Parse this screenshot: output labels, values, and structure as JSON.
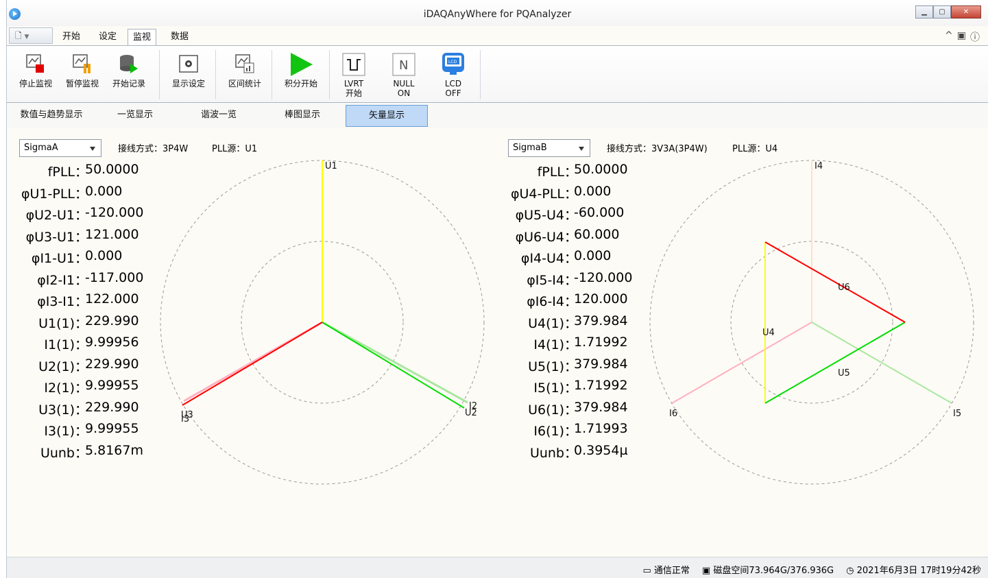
{
  "window": {
    "title": "iDAQAnyWhere for PQAnalyzer"
  },
  "menu": {
    "tabs": [
      "开始",
      "设定",
      "监视",
      "数据"
    ],
    "active": "监视"
  },
  "toolbar": {
    "stop_monitor": "停止监视",
    "pause_monitor": "暂停监视",
    "start_record": "开始记录",
    "display_settings": "显示设定",
    "interval_stats": "区间统计",
    "integral_start": "积分开始",
    "lvrt": "LVRT\n开始",
    "null_on": "NULL\nON",
    "lcd_off": "LCD\nOFF",
    "null_glyph": "N",
    "lcd_glyph": "LCD"
  },
  "subtabs": [
    "数值与趋势显示",
    "一览显示",
    "谐波一览",
    "棒图显示",
    "矢量显示"
  ],
  "active_subtab": "矢量显示",
  "left_panel": {
    "sigma": "SigmaA",
    "wiring": "接线方式：3P4W",
    "pll": "PLL源：U1",
    "measurements": [
      {
        "k": "fPLL：",
        "v": "50.0000"
      },
      {
        "k": "φU1-PLL：",
        "v": "0.000"
      },
      {
        "k": "φU2-U1：",
        "v": "-120.000"
      },
      {
        "k": "φU3-U1：",
        "v": "121.000"
      },
      {
        "k": "φI1-U1：",
        "v": "0.000"
      },
      {
        "k": "φI2-I1：",
        "v": "-117.000"
      },
      {
        "k": "φI3-I1：",
        "v": "122.000"
      },
      {
        "k": "U1(1)：",
        "v": "229.990"
      },
      {
        "k": "I1(1)：",
        "v": "9.99956"
      },
      {
        "k": "U2(1)：",
        "v": "229.990"
      },
      {
        "k": "I2(1)：",
        "v": "9.99955"
      },
      {
        "k": "U3(1)：",
        "v": "229.990"
      },
      {
        "k": "I3(1)：",
        "v": "9.99955"
      },
      {
        "k": "Uunb：",
        "v": "5.8167m"
      }
    ],
    "phasor_labels": {
      "u1": "U1",
      "i2": "I2",
      "u2": "U2",
      "u3": "U3",
      "i3": "I3"
    }
  },
  "right_panel": {
    "sigma": "SigmaB",
    "wiring": "接线方式：3V3A(3P4W)",
    "pll": "PLL源：U4",
    "measurements": [
      {
        "k": "fPLL：",
        "v": "50.0000"
      },
      {
        "k": "φU4-PLL：",
        "v": "0.000"
      },
      {
        "k": "φU5-U4：",
        "v": "-60.000"
      },
      {
        "k": "φU6-U4：",
        "v": "60.000"
      },
      {
        "k": "φI4-U4：",
        "v": "0.000"
      },
      {
        "k": "φI5-I4：",
        "v": "-120.000"
      },
      {
        "k": "φI6-I4：",
        "v": "120.000"
      },
      {
        "k": "U4(1)：",
        "v": "379.984"
      },
      {
        "k": "I4(1)：",
        "v": "1.71992"
      },
      {
        "k": "U5(1)：",
        "v": "379.984"
      },
      {
        "k": "I5(1)：",
        "v": "1.71992"
      },
      {
        "k": "U6(1)：",
        "v": "379.984"
      },
      {
        "k": "I6(1)：",
        "v": "1.71993"
      },
      {
        "k": "Uunb：",
        "v": "0.3954µ"
      }
    ],
    "phasor_labels": {
      "i4": "I4",
      "u6": "U6",
      "u4": "U4",
      "u5": "U5",
      "i6": "I6",
      "i5": "I5"
    }
  },
  "status": {
    "comm": "通信正常",
    "disk": "磁盘空间73.964G/376.936G",
    "time": "2021年6月3日 17时19分42秒"
  },
  "colors": {
    "phase1": "#ffff00",
    "phase2": "#00dd00",
    "phase3": "#ff0000",
    "i4": "#fde0c8",
    "i5": "#a8e8a0",
    "i6": "#ffb0c0"
  }
}
